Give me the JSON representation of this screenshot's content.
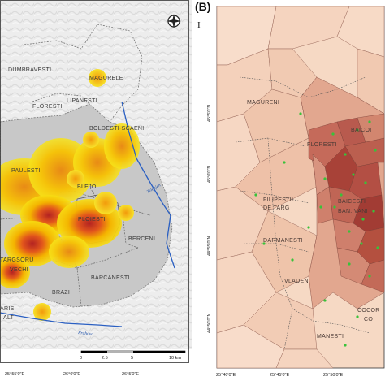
{
  "panel_a": {
    "localities": [
      {
        "name": "DUMBRAVESTI"
      },
      {
        "name": "MAGURELE"
      },
      {
        "name": "LIPANESTI"
      },
      {
        "name": "FLORESTI"
      },
      {
        "name": "BOLDESTI-SCAENI"
      },
      {
        "name": "PAULESTI"
      },
      {
        "name": "BLEJOI"
      },
      {
        "name": "PLOIESTI"
      },
      {
        "name": "BERCENI"
      },
      {
        "name": "TARGSORU"
      },
      {
        "name": "VECHI"
      },
      {
        "name": "BARCANESTI"
      },
      {
        "name": "BRAZI"
      },
      {
        "name": "ARIS"
      },
      {
        "name": "ALT"
      }
    ],
    "rivers": [
      {
        "name": "Teleajen"
      },
      {
        "name": "Prahova"
      }
    ],
    "scale_bar": {
      "ticks": [
        "0",
        "2.5",
        "5",
        "10 km"
      ]
    },
    "coordinates": [
      "25°55'0\"E",
      "26°0'0\"E",
      "26°5'0\"E"
    ],
    "north_arrow": "compass-icon"
  },
  "panel_b": {
    "letter": "(B)",
    "roman_numeral": "I",
    "localities": [
      {
        "name": "MAGURENI"
      },
      {
        "name": "FLORESTI"
      },
      {
        "name": "BAICOI"
      },
      {
        "name": "FILIPESTII"
      },
      {
        "name": "DE TARG"
      },
      {
        "name": "DARMANESTI"
      },
      {
        "name": "BAICESTI"
      },
      {
        "name": "BAN.IVANI"
      },
      {
        "name": "VLADENI"
      },
      {
        "name": "MANESTI"
      },
      {
        "name": "COCOR"
      },
      {
        "name": "CO"
      }
    ],
    "x_coordinates": [
      "25°40'0\"E",
      "25°45'0\"E",
      "25°50'0\"E"
    ],
    "y_coordinates": [
      "45°5'0\"N",
      "45°0'0\"N",
      "44°55'0\"N",
      "44°50'0\"N"
    ],
    "colors": {
      "low": "#f6d9c4",
      "mid": "#d98f78",
      "high": "#a83f3a",
      "point": "#39c23a"
    }
  }
}
